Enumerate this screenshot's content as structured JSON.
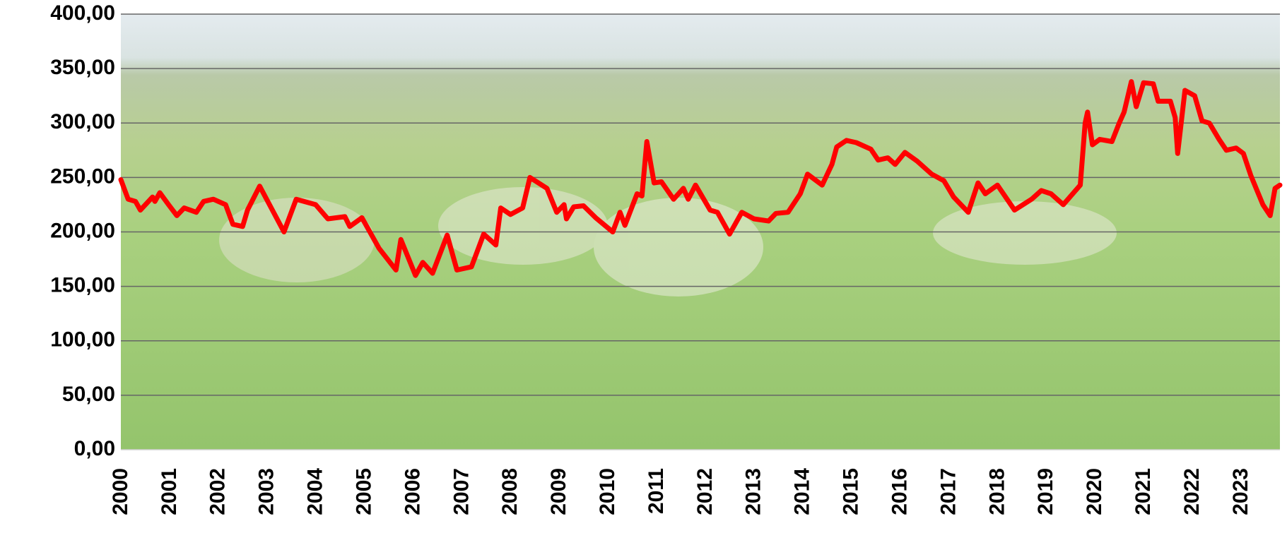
{
  "chart_data": {
    "type": "line",
    "x": [
      2000.0,
      2000.15,
      2000.3,
      2000.4,
      2000.65,
      2000.7,
      2000.8,
      2000.98,
      2001.15,
      2001.3,
      2001.55,
      2001.7,
      2001.9,
      2002.15,
      2002.3,
      2002.5,
      2002.6,
      2002.85,
      2003.35,
      2003.6,
      2004.0,
      2004.25,
      2004.6,
      2004.7,
      2004.95,
      2005.3,
      2005.65,
      2005.75,
      2006.05,
      2006.2,
      2006.4,
      2006.7,
      2006.9,
      2007.2,
      2007.45,
      2007.7,
      2007.8,
      2008.0,
      2008.25,
      2008.4,
      2008.75,
      2008.95,
      2009.1,
      2009.15,
      2009.3,
      2009.5,
      2009.75,
      2010.1,
      2010.25,
      2010.35,
      2010.6,
      2010.7,
      2010.8,
      2010.95,
      2011.1,
      2011.35,
      2011.55,
      2011.65,
      2011.8,
      2012.1,
      2012.25,
      2012.5,
      2012.75,
      2013.0,
      2013.3,
      2013.45,
      2013.7,
      2013.95,
      2014.1,
      2014.4,
      2014.6,
      2014.7,
      2014.9,
      2015.1,
      2015.4,
      2015.55,
      2015.75,
      2015.9,
      2016.1,
      2016.35,
      2016.65,
      2016.9,
      2017.1,
      2017.25,
      2017.4,
      2017.6,
      2017.75,
      2018.0,
      2018.35,
      2018.7,
      2018.9,
      2019.1,
      2019.35,
      2019.7,
      2019.8,
      2019.85,
      2019.95,
      2020.1,
      2020.35,
      2020.5,
      2020.6,
      2020.75,
      2020.85,
      2021.0,
      2021.2,
      2021.3,
      2021.55,
      2021.65,
      2021.7,
      2021.85,
      2022.05,
      2022.2,
      2022.35,
      2022.55,
      2022.7,
      2022.9,
      2023.05,
      2023.2,
      2023.45,
      2023.6,
      2023.7,
      2023.8
    ],
    "series": [
      {
        "color": "#ff0000",
        "values": [
          248,
          230,
          228,
          220,
          232,
          228,
          236,
          225,
          215,
          222,
          218,
          228,
          230,
          225,
          207,
          205,
          220,
          242,
          200,
          230,
          225,
          212,
          214,
          205,
          213,
          185,
          165,
          193,
          160,
          172,
          162,
          197,
          165,
          168,
          198,
          188,
          222,
          216,
          222,
          250,
          240,
          218,
          225,
          212,
          223,
          224,
          213,
          200,
          218,
          206,
          235,
          233,
          283,
          245,
          246,
          230,
          240,
          230,
          243,
          220,
          218,
          198,
          218,
          212,
          210,
          217,
          218,
          235,
          253,
          243,
          262,
          278,
          284,
          282,
          276,
          266,
          268,
          262,
          273,
          265,
          253,
          247,
          232,
          225,
          218,
          245,
          235,
          243,
          220,
          230,
          238,
          235,
          225,
          243,
          300,
          310,
          280,
          285,
          283,
          300,
          310,
          338,
          315,
          337,
          336,
          320,
          320,
          305,
          272,
          330,
          325,
          302,
          300,
          285,
          275,
          277,
          272,
          252,
          225,
          215,
          240,
          243
        ]
      }
    ],
    "xlim": [
      2000,
      2023.8
    ],
    "xticks": [
      2000,
      2001,
      2002,
      2003,
      2004,
      2005,
      2006,
      2007,
      2008,
      2009,
      2010,
      2011,
      2012,
      2013,
      2014,
      2015,
      2016,
      2017,
      2018,
      2019,
      2020,
      2021,
      2022,
      2023
    ],
    "ylim": [
      0,
      400
    ],
    "yticks": [
      {
        "value": 0,
        "label": "0,00"
      },
      {
        "value": 50,
        "label": "50,00"
      },
      {
        "value": 100,
        "label": "100,00"
      },
      {
        "value": 150,
        "label": "150,00"
      },
      {
        "value": 200,
        "label": "200,00"
      },
      {
        "value": 250,
        "label": "250,00"
      },
      {
        "value": 300,
        "label": "300,00"
      },
      {
        "value": 350,
        "label": "350,00"
      },
      {
        "value": 400,
        "label": "400,00"
      }
    ],
    "grid": true
  }
}
